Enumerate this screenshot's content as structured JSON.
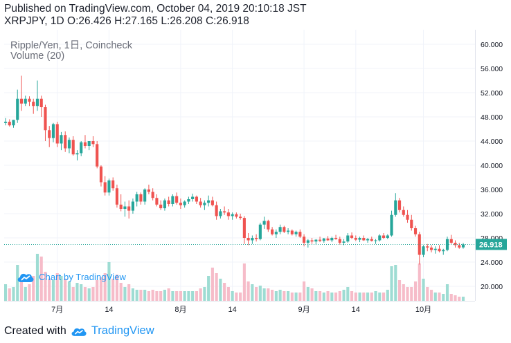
{
  "header": {
    "line1": "Published on TradingView.com, October 04, 2019 20:10:18 JST",
    "line2": "XRPJPY, 1D O:26.426 H:27.165 L:26.208 C:26.918"
  },
  "legend": {
    "symbol": "Ripple/Yen, 1日, Coincheck",
    "volume": "Volume (20)"
  },
  "watermark": {
    "text": "Chart by TradingView",
    "icon": "tradingview-cloud-icon"
  },
  "footer": {
    "created": "Created with",
    "brand": "TradingView",
    "icon": "tradingview-cloud-icon"
  },
  "colors": {
    "up": "#26a69a",
    "down": "#ef5350",
    "vol_up": "#9edcd3",
    "vol_down": "#f6bcc9",
    "last_price": "#26a69a",
    "grid": "#f0f3fa",
    "watermark": "#2196f3"
  },
  "chart_data": {
    "type": "candlestick",
    "symbol": "XRPJPY",
    "interval": "1D",
    "last_price": 26.918,
    "last_price_label": "26.918",
    "ylim": [
      17.6,
      62.4
    ],
    "y_ticks": [
      "60.000",
      "56.000",
      "52.000",
      "48.000",
      "44.000",
      "40.000",
      "36.000",
      "32.000",
      "28.000",
      "24.000",
      "20.000"
    ],
    "x_ticks": [
      {
        "label": "7月",
        "index": 13
      },
      {
        "label": "14",
        "index": 26
      },
      {
        "label": "8月",
        "index": 44
      },
      {
        "label": "14",
        "index": 57
      },
      {
        "label": "9月",
        "index": 75
      },
      {
        "label": "14",
        "index": 88
      },
      {
        "label": "10月",
        "index": 105
      }
    ],
    "ohlc": [
      [
        47.0,
        47.8,
        46.6,
        47.2
      ],
      [
        47.2,
        47.6,
        46.4,
        46.6
      ],
      [
        46.6,
        47.5,
        46.2,
        47.5
      ],
      [
        47.5,
        52.5,
        47.0,
        51.0
      ],
      [
        51.0,
        54.8,
        49.0,
        50.2
      ],
      [
        50.2,
        51.5,
        49.8,
        51.0
      ],
      [
        51.0,
        51.4,
        49.8,
        50.5
      ],
      [
        50.5,
        51.0,
        48.5,
        49.8
      ],
      [
        49.8,
        54.0,
        49.0,
        51.0
      ],
      [
        51.0,
        51.5,
        48.0,
        49.6
      ],
      [
        49.6,
        50.0,
        44.0,
        45.8
      ],
      [
        45.8,
        46.5,
        43.0,
        44.5
      ],
      [
        44.5,
        47.0,
        43.8,
        46.8
      ],
      [
        46.8,
        47.2,
        43.0,
        43.6
      ],
      [
        43.6,
        45.5,
        42.5,
        45.0
      ],
      [
        45.0,
        45.6,
        42.2,
        42.8
      ],
      [
        42.8,
        44.6,
        42.0,
        44.2
      ],
      [
        44.2,
        44.8,
        41.6,
        41.8
      ],
      [
        41.8,
        42.5,
        40.8,
        42.0
      ],
      [
        42.0,
        44.0,
        41.5,
        43.8
      ],
      [
        43.8,
        45.0,
        42.8,
        43.2
      ],
      [
        43.2,
        44.0,
        42.5,
        44.0
      ],
      [
        44.0,
        44.8,
        43.0,
        43.5
      ],
      [
        43.5,
        44.0,
        39.5,
        39.8
      ],
      [
        39.8,
        40.0,
        36.5,
        37.2
      ],
      [
        37.2,
        38.2,
        35.0,
        35.5
      ],
      [
        35.5,
        37.8,
        35.0,
        37.5
      ],
      [
        37.5,
        38.0,
        35.8,
        36.2
      ],
      [
        36.2,
        36.8,
        33.0,
        33.5
      ],
      [
        33.5,
        35.2,
        32.4,
        32.8
      ],
      [
        32.8,
        34.0,
        31.5,
        33.2
      ],
      [
        33.2,
        34.2,
        31.2,
        32.5
      ],
      [
        32.5,
        34.5,
        32.0,
        34.0
      ],
      [
        34.0,
        35.6,
        33.2,
        35.2
      ],
      [
        35.2,
        35.5,
        33.5,
        34.0
      ],
      [
        34.0,
        36.2,
        33.5,
        36.0
      ],
      [
        36.0,
        36.8,
        35.2,
        35.6
      ],
      [
        35.6,
        36.2,
        34.2,
        34.6
      ],
      [
        34.6,
        35.2,
        33.2,
        33.5
      ],
      [
        33.5,
        34.2,
        32.6,
        32.9
      ],
      [
        32.9,
        34.5,
        32.5,
        34.2
      ],
      [
        34.2,
        34.8,
        33.2,
        33.6
      ],
      [
        33.6,
        35.2,
        33.2,
        34.9
      ],
      [
        34.9,
        35.5,
        33.5,
        33.8
      ],
      [
        33.8,
        34.5,
        32.8,
        33.4
      ],
      [
        33.4,
        34.2,
        33.0,
        34.0
      ],
      [
        34.0,
        34.8,
        33.6,
        34.4
      ],
      [
        34.4,
        35.3,
        34.0,
        34.8
      ],
      [
        34.8,
        35.0,
        33.6,
        34.0
      ],
      [
        34.0,
        34.6,
        33.0,
        33.4
      ],
      [
        33.4,
        34.2,
        32.6,
        33.8
      ],
      [
        33.8,
        35.0,
        33.2,
        34.2
      ],
      [
        34.2,
        34.8,
        33.2,
        33.4
      ],
      [
        33.4,
        34.0,
        31.0,
        31.6
      ],
      [
        31.6,
        32.8,
        31.2,
        32.4
      ],
      [
        32.4,
        33.2,
        31.8,
        32.2
      ],
      [
        32.2,
        32.8,
        31.0,
        31.6
      ],
      [
        31.6,
        32.2,
        31.0,
        31.9
      ],
      [
        31.9,
        32.2,
        31.2,
        31.5
      ],
      [
        31.5,
        32.0,
        31.0,
        31.3
      ],
      [
        31.3,
        31.6,
        27.0,
        28.0
      ],
      [
        28.0,
        28.8,
        26.8,
        27.6
      ],
      [
        27.6,
        28.4,
        27.0,
        28.0
      ],
      [
        28.0,
        28.6,
        27.4,
        27.8
      ],
      [
        27.8,
        30.5,
        27.6,
        30.2
      ],
      [
        30.2,
        31.5,
        29.5,
        30.8
      ],
      [
        30.8,
        31.0,
        29.0,
        29.4
      ],
      [
        29.4,
        29.8,
        28.4,
        28.6
      ],
      [
        28.6,
        29.4,
        28.0,
        29.0
      ],
      [
        29.0,
        30.2,
        28.6,
        29.8
      ],
      [
        29.8,
        30.0,
        28.8,
        29.0
      ],
      [
        29.0,
        29.6,
        28.6,
        29.2
      ],
      [
        29.2,
        29.4,
        28.4,
        28.6
      ],
      [
        28.6,
        29.2,
        28.2,
        29.0
      ],
      [
        29.0,
        29.4,
        28.0,
        28.2
      ],
      [
        28.2,
        28.6,
        26.6,
        27.2
      ],
      [
        27.2,
        27.8,
        26.4,
        27.6
      ],
      [
        27.6,
        28.0,
        27.0,
        27.4
      ],
      [
        27.4,
        27.8,
        26.9,
        27.7
      ],
      [
        27.7,
        28.2,
        27.3,
        27.5
      ],
      [
        27.5,
        28.0,
        27.2,
        27.9
      ],
      [
        27.9,
        28.3,
        27.5,
        27.6
      ],
      [
        27.6,
        28.2,
        27.3,
        28.0
      ],
      [
        28.0,
        28.5,
        27.7,
        27.8
      ],
      [
        27.8,
        28.2,
        26.9,
        27.2
      ],
      [
        27.2,
        27.8,
        26.8,
        27.4
      ],
      [
        27.4,
        28.8,
        27.2,
        28.4
      ],
      [
        28.4,
        28.9,
        27.8,
        28.0
      ],
      [
        28.0,
        28.4,
        27.5,
        27.7
      ],
      [
        27.7,
        28.2,
        27.3,
        28.0
      ],
      [
        28.0,
        28.4,
        27.5,
        27.6
      ],
      [
        27.6,
        28.0,
        27.2,
        27.8
      ],
      [
        27.8,
        28.2,
        27.4,
        27.5
      ],
      [
        27.5,
        27.8,
        27.0,
        27.6
      ],
      [
        27.6,
        28.6,
        27.4,
        28.4
      ],
      [
        28.4,
        28.8,
        27.8,
        28.0
      ],
      [
        28.0,
        28.6,
        27.8,
        28.4
      ],
      [
        28.4,
        32.5,
        28.2,
        31.8
      ],
      [
        31.8,
        35.4,
        31.5,
        34.2
      ],
      [
        34.2,
        34.6,
        32.2,
        32.6
      ],
      [
        32.6,
        33.2,
        31.5,
        31.8
      ],
      [
        31.8,
        32.6,
        30.5,
        31.0
      ],
      [
        31.0,
        31.8,
        29.2,
        29.6
      ],
      [
        29.6,
        30.0,
        28.2,
        28.6
      ],
      [
        28.6,
        29.0,
        23.6,
        25.2
      ],
      [
        25.2,
        26.8,
        24.8,
        26.6
      ],
      [
        26.6,
        27.0,
        25.8,
        26.4
      ],
      [
        26.4,
        26.8,
        25.6,
        26.0
      ],
      [
        26.0,
        26.6,
        25.4,
        26.2
      ],
      [
        26.2,
        26.8,
        25.6,
        25.8
      ],
      [
        25.8,
        26.2,
        25.2,
        26.0
      ],
      [
        26.0,
        28.2,
        25.8,
        27.8
      ],
      [
        27.8,
        28.5,
        27.0,
        27.2
      ],
      [
        27.2,
        27.6,
        26.4,
        26.8
      ],
      [
        26.8,
        27.2,
        26.2,
        26.4
      ],
      [
        26.426,
        27.165,
        26.208,
        26.918
      ]
    ],
    "volume": [
      1.2,
      0.9,
      1.0,
      2.6,
      1.5,
      1.0,
      1.2,
      1.8,
      3.4,
      3.2,
      2.1,
      1.6,
      1.5,
      2.0,
      1.8,
      1.6,
      1.4,
      1.0,
      1.3,
      1.2,
      1.0,
      0.9,
      1.0,
      1.5,
      1.7,
      2.0,
      2.8,
      1.6,
      1.9,
      1.3,
      1.0,
      1.2,
      0.9,
      0.8,
      0.8,
      0.8,
      0.7,
      0.8,
      0.7,
      0.7,
      0.8,
      0.9,
      0.7,
      0.7,
      0.7,
      0.7,
      0.7,
      0.7,
      0.7,
      0.9,
      1.0,
      1.8,
      2.4,
      2.0,
      1.6,
      1.3,
      1.0,
      0.7,
      0.6,
      0.6,
      2.7,
      1.4,
      1.2,
      1.0,
      1.1,
      0.9,
      0.9,
      0.8,
      0.7,
      0.8,
      0.7,
      0.7,
      0.6,
      0.6,
      0.6,
      1.4,
      1.0,
      0.9,
      0.7,
      0.7,
      0.6,
      0.7,
      0.6,
      0.6,
      0.7,
      0.8,
      1.0,
      0.7,
      0.6,
      0.6,
      0.6,
      0.6,
      0.6,
      0.7,
      0.6,
      0.6,
      0.8,
      2.5,
      2.6,
      1.5,
      1.2,
      1.0,
      1.0,
      1.4,
      2.7,
      1.6,
      1.0,
      0.8,
      0.6,
      0.6,
      0.5,
      1.2,
      0.5,
      0.4,
      0.3,
      0.3
    ],
    "volume_max": 3.4
  }
}
